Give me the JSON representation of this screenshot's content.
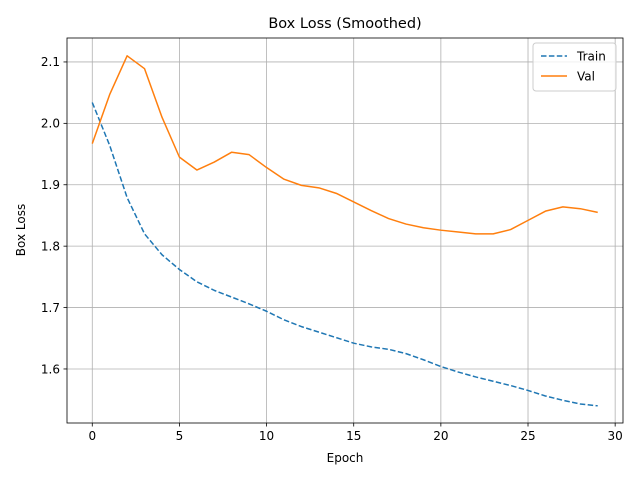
{
  "chart_data": {
    "type": "line",
    "title": "Box Loss (Smoothed)",
    "xlabel": "Epoch",
    "ylabel": "Box Loss",
    "xlim": [
      -1.45,
      30.45
    ],
    "ylim": [
      1.512,
      2.139
    ],
    "xticks": [
      0,
      5,
      10,
      15,
      20,
      25,
      30
    ],
    "yticks": [
      1.6,
      1.7,
      1.8,
      1.9,
      2.0,
      2.1
    ],
    "xtick_labels": [
      "0",
      "5",
      "10",
      "15",
      "20",
      "25",
      "30"
    ],
    "ytick_labels": [
      "1.6",
      "1.7",
      "1.8",
      "1.9",
      "2.0",
      "2.1"
    ],
    "grid": true,
    "legend_position": "top-right",
    "x": [
      0,
      1,
      2,
      3,
      4,
      5,
      6,
      7,
      8,
      9,
      10,
      11,
      12,
      13,
      14,
      15,
      16,
      17,
      18,
      19,
      20,
      21,
      22,
      23,
      24,
      25,
      26,
      27,
      28,
      29
    ],
    "series": [
      {
        "name": "Train",
        "color": "#1f77b4",
        "linestyle": "dashed",
        "values": [
          2.034,
          1.964,
          1.879,
          1.82,
          1.786,
          1.762,
          1.742,
          1.728,
          1.717,
          1.706,
          1.694,
          1.68,
          1.669,
          1.66,
          1.651,
          1.642,
          1.636,
          1.632,
          1.625,
          1.615,
          1.604,
          1.595,
          1.587,
          1.58,
          1.573,
          1.565,
          1.556,
          1.549,
          1.543,
          1.54
        ]
      },
      {
        "name": "Val",
        "color": "#ff7f0e",
        "linestyle": "solid",
        "values": [
          1.967,
          2.047,
          2.11,
          2.089,
          2.01,
          1.945,
          1.924,
          1.937,
          1.953,
          1.949,
          1.928,
          1.909,
          1.899,
          1.895,
          1.886,
          1.872,
          1.858,
          1.845,
          1.836,
          1.83,
          1.826,
          1.823,
          1.82,
          1.82,
          1.827,
          1.842,
          1.857,
          1.864,
          1.861,
          1.855
        ]
      }
    ]
  }
}
